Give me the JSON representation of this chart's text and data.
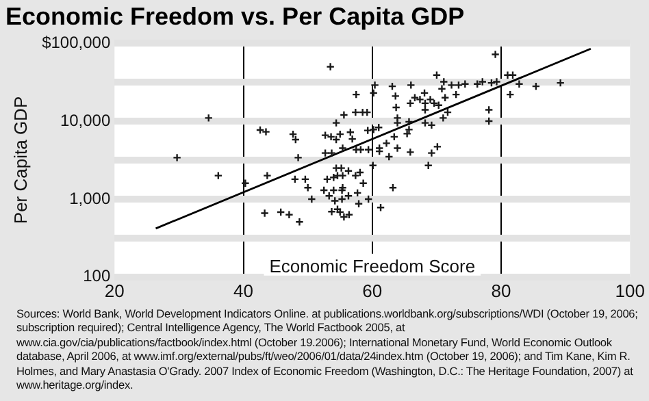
{
  "chart_data": {
    "type": "scatter",
    "title": "Economic Freedom vs. Per Capita GDP",
    "xlabel": "Economic Freedom Score",
    "ylabel": "Per Capita GDP",
    "log": "y",
    "grid": true,
    "marker": "cross",
    "xlim": [
      20,
      100
    ],
    "xticks": [
      20,
      40,
      60,
      80,
      100
    ],
    "ylim": [
      100,
      100000
    ],
    "yticks": [
      {
        "value": 100,
        "label": "100"
      },
      {
        "value": 316,
        "label": null
      },
      {
        "value": 1000,
        "label": "1,000"
      },
      {
        "value": 3162,
        "label": null
      },
      {
        "value": 10000,
        "label": "10,000"
      },
      {
        "value": 31623,
        "label": null
      },
      {
        "value": 100000,
        "label": "$100,000"
      }
    ],
    "series": [
      {
        "color": "#1a1a1a",
        "x": [
          53.5,
          34.6,
          29.7,
          36.1,
          40.3,
          42.6,
          43.5,
          43.7,
          47.7,
          48.1,
          48.5,
          48.0,
          49.6,
          50.0,
          50.6,
          43.3,
          45.8,
          47.1,
          48.7,
          52.7,
          53.6,
          54.4,
          54.4,
          55.0,
          55.6,
          52.7,
          53.7,
          54.4,
          55.2,
          53.0,
          54.0,
          54.6,
          55.4,
          52.5,
          53.3,
          54.0,
          55.3,
          55.3,
          53.7,
          54.6,
          55.0,
          55.6,
          54.2,
          79.1,
          70.0,
          66.0,
          63.1,
          60.4,
          60.2,
          57.5,
          63.6,
          63.7,
          63.9,
          68.1,
          66.6,
          67.4,
          68.2,
          69.0,
          65.9,
          68.2,
          69.6,
          70.8,
          71.1,
          72.3,
          73.4,
          74.4,
          73.0,
          71.3,
          70.3,
          71.7,
          71.0,
          76.3,
          77.1,
          78.5,
          79.3,
          81.0,
          81.8,
          82.8,
          81.4,
          85.4,
          89.2,
          78.1,
          78.1,
          68.2,
          69.2,
          65.7,
          65.4,
          63.9,
          63.4,
          65.7,
          70.1,
          69.2,
          68.7,
          65.9,
          63.9,
          62.2,
          61.0,
          60.2,
          59.3,
          59.2,
          58.5,
          57.4,
          56.6,
          57.5,
          58.2,
          59.4,
          61.1,
          56.9,
          55.4,
          61.1,
          60.1,
          56.3,
          57.4,
          58.1,
          58.6,
          55.4,
          57.7,
          56.3,
          59.4,
          57.9,
          61.3,
          63.2,
          56.4,
          62.6
        ],
        "values": [
          50000,
          11000,
          3400,
          2000,
          1600,
          7700,
          7300,
          2000,
          6800,
          5800,
          3400,
          1800,
          1800,
          1400,
          1000,
          660,
          680,
          630,
          510,
          6600,
          6300,
          5800,
          9500,
          6800,
          12000,
          3900,
          3900,
          2500,
          2500,
          1800,
          1900,
          2000,
          2000,
          1300,
          1100,
          1300,
          1300,
          1000,
          690,
          740,
          680,
          590,
          950,
          72000,
          39000,
          29000,
          28000,
          29000,
          23000,
          22000,
          21000,
          15000,
          11000,
          23000,
          20000,
          19000,
          17000,
          19000,
          17000,
          14000,
          17000,
          26000,
          32000,
          29000,
          29000,
          30000,
          22000,
          20000,
          16000,
          13000,
          11000,
          30000,
          32000,
          31000,
          32000,
          39000,
          39000,
          30000,
          22000,
          28000,
          31000,
          14000,
          10000,
          9500,
          8900,
          9800,
          6900,
          9500,
          6300,
          7800,
          4700,
          3900,
          2700,
          4000,
          4500,
          5200,
          8300,
          7800,
          7600,
          13000,
          13000,
          13000,
          7200,
          4300,
          4300,
          4300,
          4500,
          5900,
          4500,
          4100,
          2700,
          2300,
          2000,
          2200,
          1600,
          1400,
          1200,
          1100,
          1000,
          870,
          780,
          1400,
          630,
          3500
        ]
      },
      {
        "type": "line",
        "marker": "none",
        "color": "#000000",
        "x": [
          26.4,
          93.9
        ],
        "values": [
          420,
          85000
        ]
      }
    ],
    "annotations": [
      "Sources: World Bank, World Development Indicators Online. at publications.worldbank.org/subscriptions/WDI (October 19, 2006; subscription required); Central Intelligence Agency, The World Factbook 2005, at www.cia.gov/cia/publications/factbook/index.html (October 19.2006); International Monetary Fund, World Economic Outlook database, April 2006, at www.imf.org/external/pubs/ft/weo/2006/01/data/24index.htm (October 19, 2006); and Tim Kane, Kim R. Holmes, and Mary Anastasia O'Grady. 2007 Index of Economic Freedom (Washington, D.C.: The Heritage Foundation, 2007) at www.heritage.org/index."
    ]
  }
}
